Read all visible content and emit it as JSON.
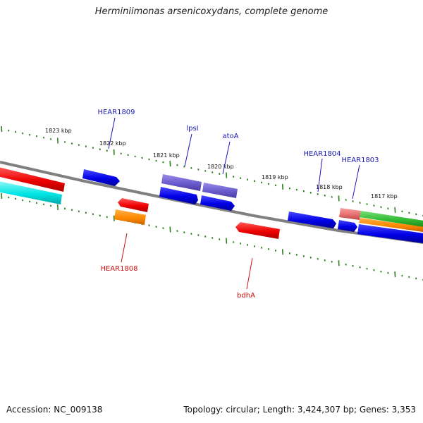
{
  "title": "Herminiimonas arsenicoxydans, complete genome",
  "footer": {
    "accession": "Accession: NC_009138",
    "summary": "Topology: circular; Length: 3,424,307 bp; Genes: 3,353"
  },
  "colors": {
    "backbone": "#808080",
    "tick": "#2e7d1f",
    "label_blue": "#1a1ab8",
    "label_red": "#cc1111",
    "forward_feature": "#0000e6",
    "reverse_feature": "#ee0000",
    "purple_feature": "#6a5acd",
    "orange_feature": "#ff8800",
    "cyan_feature": "#00e5e5",
    "green_feature": "#33bb33",
    "salmon_feature": "#e87070"
  },
  "scale_labels": [
    "1823 kbp",
    "1822 kbp",
    "1821 kbp",
    "1820 kbp",
    "1819 kbp",
    "1818 kbp",
    "1817 kbp"
  ],
  "gene_labels": [
    {
      "text": "HEAR1809",
      "color": "blue"
    },
    {
      "text": "lpsI",
      "color": "blue"
    },
    {
      "text": "atoA",
      "color": "blue"
    },
    {
      "text": "HEAR1804",
      "color": "blue"
    },
    {
      "text": "HEAR1803",
      "color": "blue"
    },
    {
      "text": "HEAR1808",
      "color": "red"
    },
    {
      "text": "bdhA",
      "color": "red"
    }
  ]
}
